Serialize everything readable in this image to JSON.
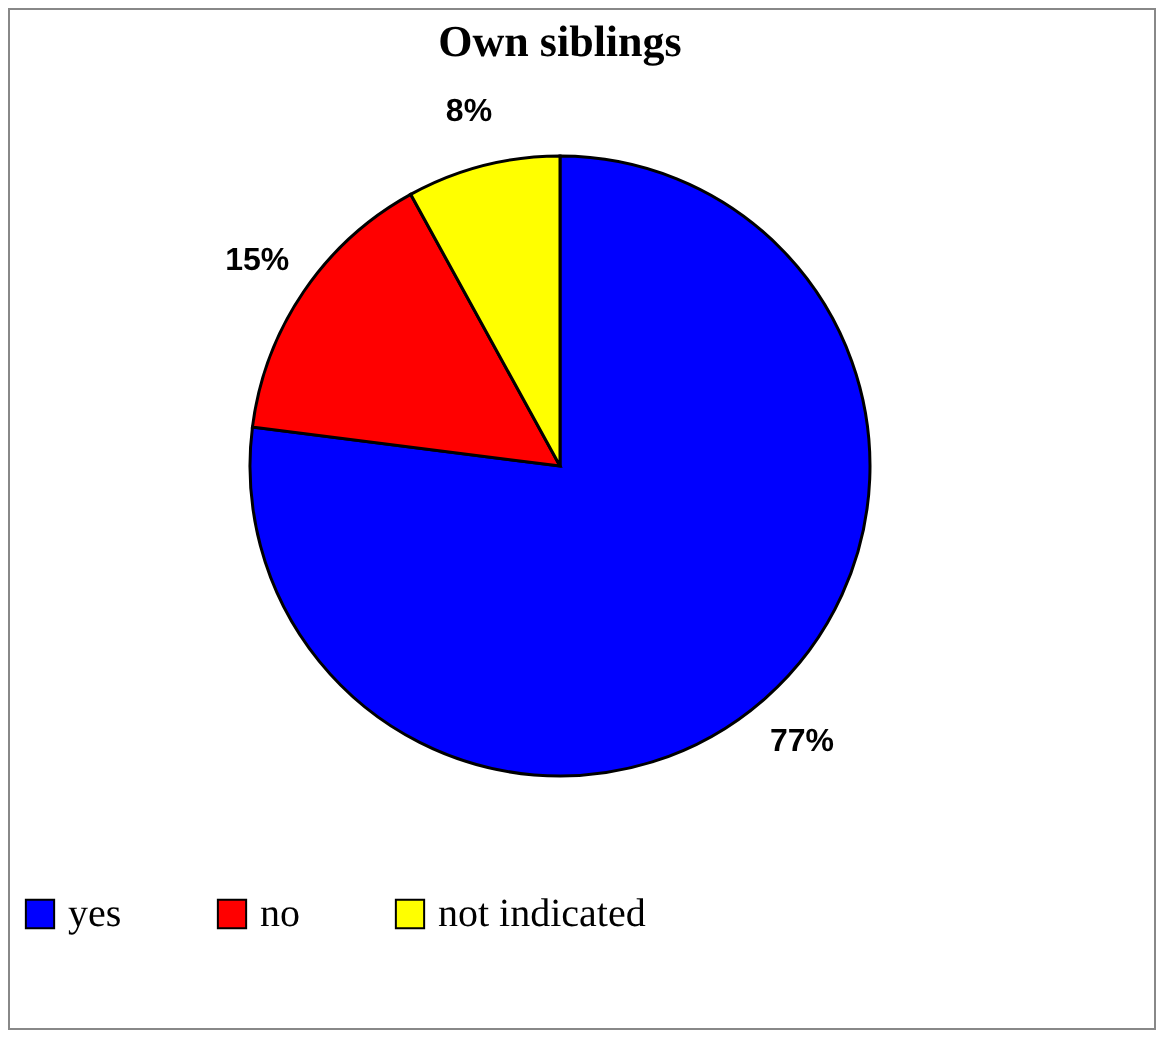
{
  "chart_data": {
    "type": "pie",
    "title": "Own siblings",
    "categories": [
      "yes",
      "no",
      "not indicated"
    ],
    "values": [
      77,
      15,
      8
    ],
    "colors": [
      "#0000ff",
      "#ff0000",
      "#ffff00"
    ],
    "value_labels": [
      "77%",
      "15%",
      "8%"
    ],
    "legend": "bottom"
  }
}
